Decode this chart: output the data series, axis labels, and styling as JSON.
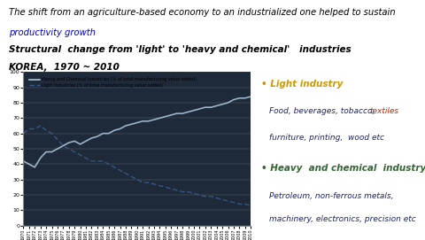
{
  "title_line1": "The shift from an agriculture-based economy to an industrialized one helped to sustain",
  "title_link": "productivity growth",
  "subtitle1": "Structural  change from 'light' to 'heavy and chemical'   industries",
  "subtitle2": "KOREA,  1970 ~ 2010",
  "years": [
    1970,
    1971,
    1972,
    1973,
    1974,
    1975,
    1976,
    1977,
    1978,
    1979,
    1980,
    1981,
    1982,
    1983,
    1984,
    1985,
    1986,
    1987,
    1988,
    1989,
    1990,
    1991,
    1992,
    1993,
    1994,
    1995,
    1996,
    1997,
    1998,
    1999,
    2000,
    2001,
    2002,
    2003,
    2004,
    2005,
    2006,
    2007,
    2008,
    2009,
    2010
  ],
  "heavy_chem": [
    42,
    40,
    38,
    44,
    48,
    48,
    50,
    52,
    54,
    55,
    53,
    55,
    57,
    58,
    60,
    60,
    62,
    63,
    65,
    66,
    67,
    68,
    68,
    69,
    70,
    71,
    72,
    73,
    73,
    74,
    75,
    76,
    77,
    77,
    78,
    79,
    80,
    82,
    83,
    83,
    84
  ],
  "light_ind": [
    60,
    63,
    63,
    65,
    62,
    60,
    56,
    52,
    50,
    48,
    46,
    44,
    42,
    42,
    42,
    40,
    38,
    36,
    34,
    32,
    30,
    28,
    28,
    27,
    26,
    25,
    24,
    23,
    22,
    22,
    21,
    20,
    19,
    19,
    18,
    17,
    16,
    15,
    14,
    14,
    13
  ],
  "heavy_color": "#a8c4d8",
  "light_color": "#3a5a8a",
  "chart_bg": "#1e2a3a",
  "light_industry_color": "#cc9900",
  "heavy_industry_color": "#336633",
  "text_navy": "#1a237e",
  "text_red": "#cc2200",
  "legend_heavy": "Heavy and Chemical Industries (% of total manufacturing value added)",
  "legend_light": "Light Industries (% of total manufacturing value added)",
  "right_light_title": "• Light industry",
  "right_light_text1": "Food, beverages, tobacco, ",
  "right_light_text1_red": "textiles",
  "right_light_text2": "furniture, printing,  wood etc",
  "right_heavy_title": "• Heavy  and chemical  industry",
  "right_heavy_text1": "Petroleum, non-ferrous metals,",
  "right_heavy_text2": "machinery, electronics, precision etc",
  "ylim": [
    0,
    100
  ],
  "yticks": [
    0,
    10,
    20,
    30,
    40,
    50,
    60,
    70,
    80,
    90,
    100
  ]
}
